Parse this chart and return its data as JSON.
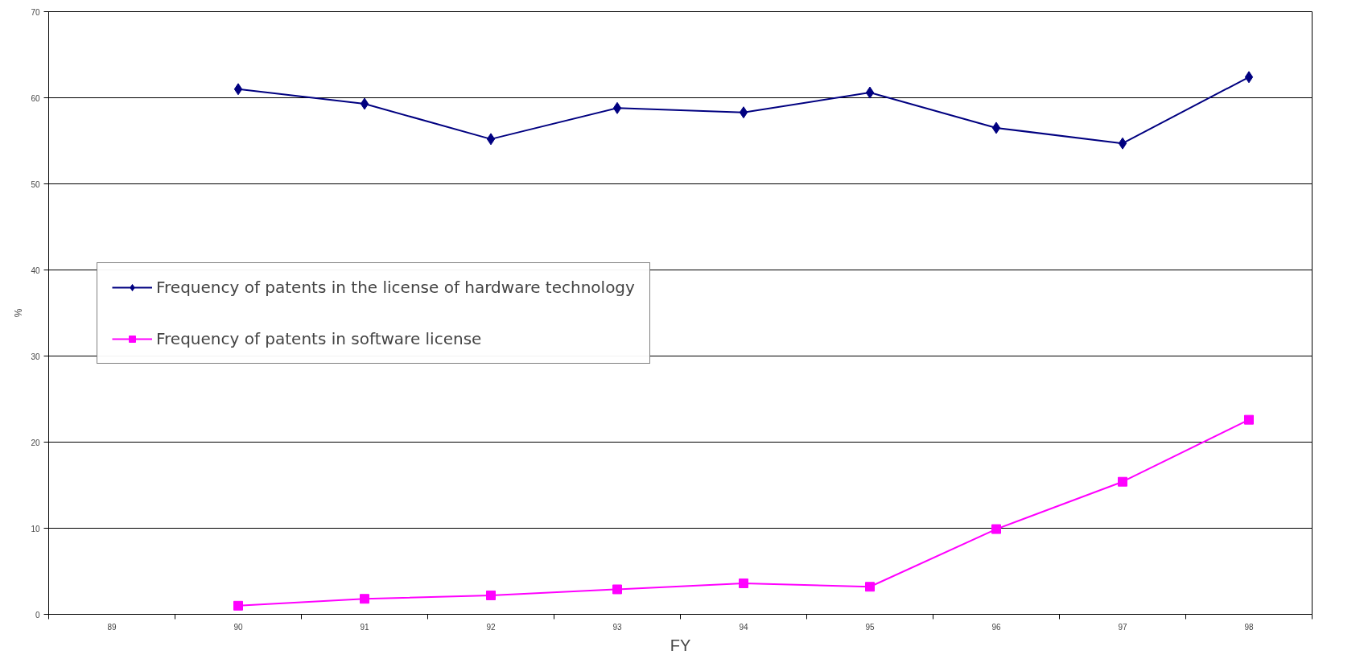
{
  "chart_data": {
    "type": "line",
    "xlabel": "FY",
    "ylabel": "%",
    "categories": [
      "89",
      "90",
      "91",
      "92",
      "93",
      "94",
      "95",
      "96",
      "97",
      "98"
    ],
    "series": [
      {
        "name": "Frequency of patents in the license of hardware technology",
        "color": "#000080",
        "marker": "diamond",
        "values": [
          null,
          61.0,
          59.3,
          55.2,
          58.8,
          58.3,
          60.6,
          56.5,
          54.7,
          62.4
        ]
      },
      {
        "name": "Frequency of patents in software license",
        "color": "#ff00ff",
        "marker": "square",
        "values": [
          null,
          1.0,
          1.8,
          2.2,
          2.9,
          3.6,
          3.2,
          9.9,
          15.4,
          22.6
        ]
      }
    ],
    "ylim": [
      0,
      70
    ],
    "yticks": [
      0,
      10,
      20,
      30,
      40,
      50,
      60,
      70
    ],
    "grid": "y",
    "legend": "left"
  }
}
